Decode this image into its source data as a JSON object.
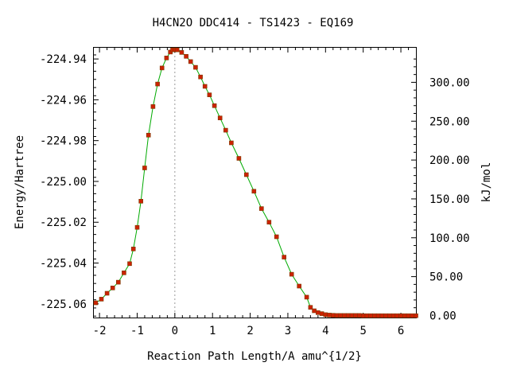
{
  "chart_data": {
    "type": "line",
    "title": "H4CN2O   DDC414 - TS1423 - EQ169",
    "xlabel": "Reaction Path Length/A amu^{1/2}",
    "ylabel": "Energy/Hartree",
    "y2label": "kJ/mol",
    "xlim": [
      -2.15,
      6.4
    ],
    "ylim": [
      -225.0667,
      -224.9345
    ],
    "y2_zero_hartree": -225.0657,
    "hartree_to_kjmol": 2625.5,
    "x_ticks": [
      -2,
      -1,
      0,
      1,
      2,
      3,
      4,
      5,
      6
    ],
    "x_tick_labels": [
      "-2",
      "-1",
      "0",
      "1",
      "2",
      "3",
      "4",
      "5",
      "6"
    ],
    "y_ticks": [
      -224.94,
      -224.96,
      -224.98,
      -225.0,
      -225.02,
      -225.04,
      -225.06
    ],
    "y_tick_labels": [
      "-224.94",
      "-224.96",
      "-224.98",
      "-225.00",
      "-225.02",
      "-225.04",
      "-225.06"
    ],
    "y2_ticks": [
      0,
      50,
      100,
      150,
      200,
      250,
      300
    ],
    "y2_tick_labels": [
      "0.00",
      "50.00",
      "100.00",
      "150.00",
      "200.00",
      "250.00",
      "300.00"
    ],
    "ts_marker_x": 0,
    "line_color": "#00aa00",
    "marker_color": "#cc2200",
    "marker_edge_color": "#7a3a00",
    "grid": false,
    "series": [
      {
        "x": [
          -2.1,
          -1.95,
          -1.8,
          -1.65,
          -1.5,
          -1.35,
          -1.2,
          -1.1,
          -1.0,
          -0.9,
          -0.8,
          -0.7,
          -0.58,
          -0.46,
          -0.34,
          -0.22,
          -0.12,
          -0.06,
          0.0,
          0.06,
          0.18,
          0.3,
          0.42,
          0.55,
          0.68,
          0.8,
          0.92,
          1.05,
          1.2,
          1.35,
          1.5,
          1.7,
          1.9,
          2.1,
          2.3,
          2.5,
          2.7,
          2.9,
          3.1,
          3.3,
          3.5,
          3.6,
          3.7,
          3.8,
          3.9,
          4.0,
          4.1,
          4.2,
          4.3,
          4.4,
          4.5,
          4.6,
          4.7,
          4.8,
          4.9,
          5.0,
          5.1,
          5.2,
          5.3,
          5.4,
          5.5,
          5.6,
          5.7,
          5.8,
          5.9,
          6.0,
          6.1,
          6.2,
          6.3,
          6.4
        ],
        "y": [
          -225.0595,
          -225.0577,
          -225.0548,
          -225.0522,
          -225.0494,
          -225.0448,
          -225.0403,
          -225.0331,
          -225.0225,
          -225.0097,
          -224.9934,
          -224.9773,
          -224.9633,
          -224.9523,
          -224.9444,
          -224.9395,
          -224.9366,
          -224.9355,
          -224.9355,
          -224.9355,
          -224.9368,
          -224.9387,
          -224.9413,
          -224.9441,
          -224.9488,
          -224.9534,
          -224.9576,
          -224.9629,
          -224.9689,
          -224.9749,
          -224.9811,
          -224.9887,
          -224.9967,
          -225.0048,
          -225.0133,
          -225.02,
          -225.0271,
          -225.0371,
          -225.0455,
          -225.0513,
          -225.0567,
          -225.0617,
          -225.0634,
          -225.0643,
          -225.0648,
          -225.0653,
          -225.0655,
          -225.0656,
          -225.0657,
          -225.0657,
          -225.0657,
          -225.0657,
          -225.0657,
          -225.0657,
          -225.0657,
          -225.0658,
          -225.0658,
          -225.0658,
          -225.0658,
          -225.0658,
          -225.0658,
          -225.0658,
          -225.0658,
          -225.0658,
          -225.0658,
          -225.0658,
          -225.0658,
          -225.0658,
          -225.0658,
          -225.0658
        ]
      }
    ]
  }
}
